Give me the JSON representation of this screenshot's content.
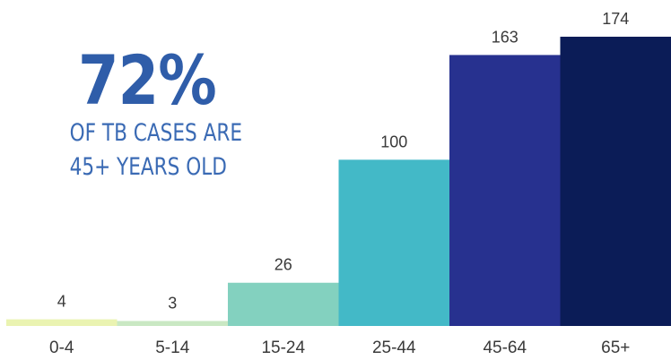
{
  "callout": {
    "headline": "72%",
    "line1": "OF TB CASES ARE",
    "line2": "45+ YEARS OLD"
  },
  "chart_data": {
    "type": "bar",
    "categories": [
      "0-4",
      "5-14",
      "15-24",
      "25-44",
      "45-64",
      "65+"
    ],
    "values": [
      4,
      3,
      26,
      100,
      163,
      174
    ],
    "colors": [
      "#eaf3b1",
      "#c9e8c3",
      "#83d1bf",
      "#43b9c7",
      "#27318f",
      "#0b1c57"
    ],
    "title": "",
    "xlabel": "",
    "ylabel": "",
    "ylim": [
      0,
      174
    ],
    "grid": false,
    "legend": "none",
    "data_labels": true
  }
}
